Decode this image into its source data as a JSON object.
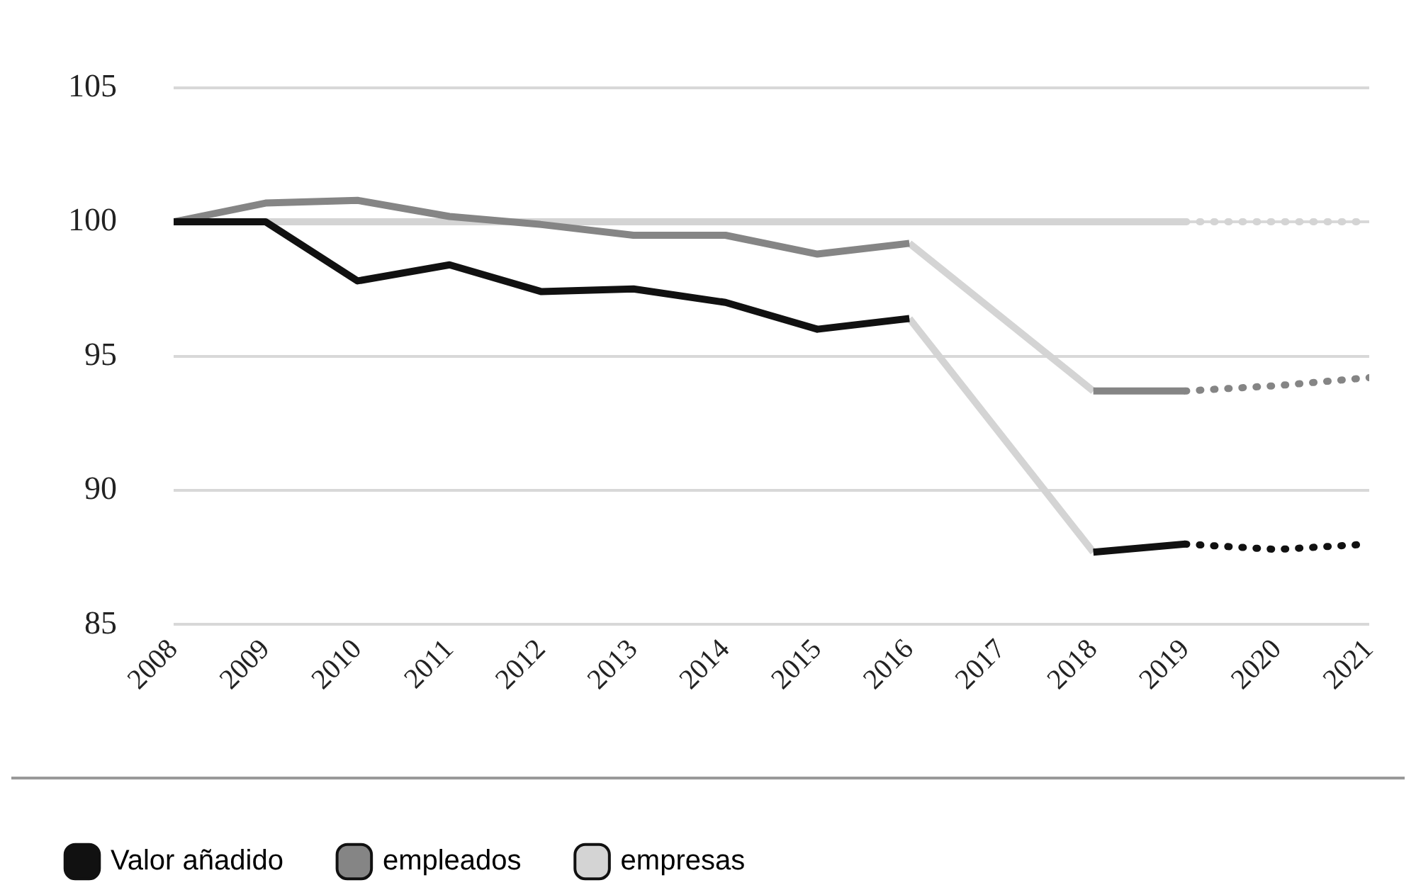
{
  "chart_data": {
    "type": "line",
    "x": [
      2008,
      2009,
      2010,
      2011,
      2012,
      2013,
      2014,
      2015,
      2016,
      2017,
      2018,
      2019
    ],
    "series": [
      {
        "name": "Valor añadido",
        "color": "#111111",
        "values": [
          100,
          100,
          97.8,
          98.4,
          97.4,
          97.5,
          97.0,
          96.0,
          96.4,
          null,
          87.7,
          88.0
        ]
      },
      {
        "name": "empleados",
        "color": "#858585",
        "values": [
          100,
          100.7,
          100.8,
          100.2,
          99.9,
          99.5,
          99.5,
          98.8,
          99.2,
          null,
          93.7,
          93.7
        ]
      },
      {
        "name": "empresas",
        "color": "#d4d4d4",
        "values": [
          100,
          100,
          100,
          100,
          100,
          100,
          100,
          100,
          100,
          100,
          100,
          100
        ]
      },
      {
        "color": "#d4d4d4",
        "x": [
          2016,
          2018
        ],
        "values": [
          96.4,
          87.7
        ]
      },
      {
        "color": "#d4d4d4",
        "x": [
          2016,
          2018
        ],
        "values": [
          99.2,
          93.7
        ]
      },
      {
        "color": "#111111",
        "line_style": "dotted",
        "x": [
          2019,
          2020,
          2021
        ],
        "values": [
          88.0,
          87.8,
          88.0
        ]
      },
      {
        "color": "#858585",
        "line_style": "dotted",
        "x": [
          2019,
          2020,
          2021
        ],
        "values": [
          93.7,
          93.9,
          94.2
        ]
      },
      {
        "color": "#d4d4d4",
        "line_style": "dotted",
        "x": [
          2019,
          2020,
          2021
        ],
        "values": [
          100,
          100,
          100
        ]
      }
    ],
    "xlim": [
      2008,
      2021
    ],
    "xticks": [
      2008,
      2009,
      2010,
      2011,
      2012,
      2013,
      2014,
      2015,
      2016,
      2017,
      2018,
      2019,
      2020,
      2021
    ],
    "ylim": [
      85,
      105
    ],
    "yticks": [
      85,
      90,
      95,
      100,
      105
    ],
    "grid": "y",
    "legend": "bottom",
    "marker": "none",
    "line_style": "solid"
  }
}
